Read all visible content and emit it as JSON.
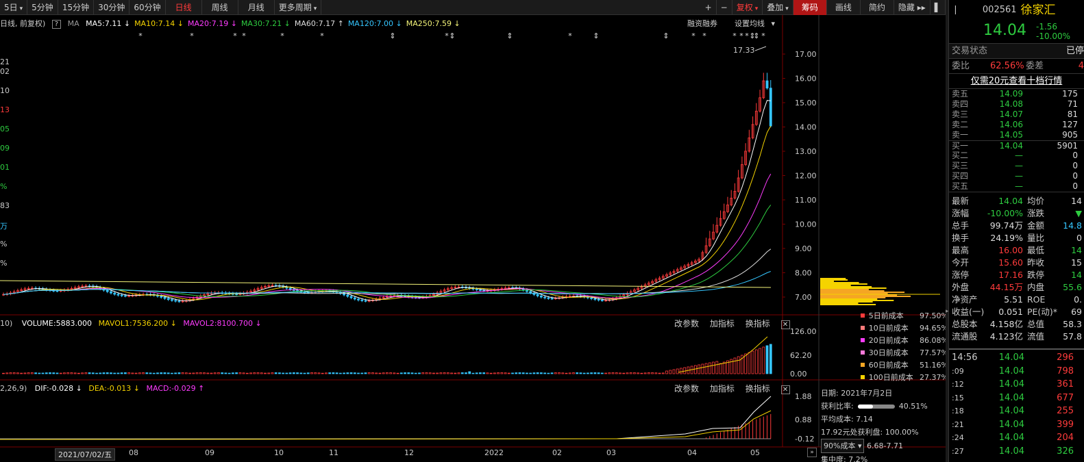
{
  "toolbar": {
    "items": [
      "5日",
      "5分钟",
      "15分钟",
      "30分钟",
      "60分钟",
      "日线",
      "周线",
      "月线",
      "更多周期"
    ],
    "right": [
      "+",
      "−",
      "复权",
      "叠加",
      "筹码",
      "画线",
      "简约",
      "隐藏"
    ]
  },
  "chart_title": "日线, 前复权)",
  "ma": {
    "label": "MA",
    "items": [
      {
        "text": "MA5:7.11",
        "arrow": "↓",
        "color": "#ffffff"
      },
      {
        "text": "MA10:7.14",
        "arrow": "↓",
        "color": "#f5d300"
      },
      {
        "text": "MA20:7.19",
        "arrow": "↓",
        "color": "#ff3cff"
      },
      {
        "text": "MA30:7.21",
        "arrow": "↓",
        "color": "#2ecc40"
      },
      {
        "text": "MA60:7.17",
        "arrow": "↑",
        "color": "#dddddd"
      },
      {
        "text": "MA120:7.00",
        "arrow": "↓",
        "color": "#35c6ff"
      },
      {
        "text": "MA250:7.59",
        "arrow": "↓",
        "color": "#f5f57a"
      }
    ],
    "rz": "融资融券",
    "setting": "设置均线"
  },
  "left_edge": [
    "21",
    "02",
    "10",
    "13",
    "05",
    "09",
    "01",
    "%",
    "83",
    "万",
    "%",
    "%"
  ],
  "price_axis": [
    "17.00",
    "16.00",
    "15.00",
    "14.00",
    "13.00",
    "12.00",
    "11.00",
    "10.00",
    "9.00",
    "8.00",
    "7.00"
  ],
  "high_label": "17.33",
  "volume": {
    "head": "10)",
    "text": "VOLUME:5883.000",
    "mavol1": "MAVOL1:7536.200",
    "mavol2": "MAVOL2:8100.700",
    "axis": [
      "126.00",
      "62.20",
      "0.00"
    ]
  },
  "macd": {
    "head": "2,26,9)",
    "dif": "DIF:-0.028",
    "dea": "DEA:-0.013",
    "macd": "MACD:-0.029",
    "axis": [
      "1.88",
      "0.88",
      "-0.12"
    ]
  },
  "pane_btns": [
    "改参数",
    "加指标",
    "换指标"
  ],
  "xaxis": {
    "first": "2021/07/02/五",
    "labels": [
      "08",
      "09",
      "10",
      "11",
      "12",
      "2022",
      "02",
      "03",
      "04",
      "05"
    ]
  },
  "cost": [
    {
      "label": "5日前成本",
      "value": "97.50%",
      "color": "#ff3b3b"
    },
    {
      "label": "10日前成本",
      "value": "94.65%",
      "color": "#ff7b7b"
    },
    {
      "label": "20日前成本",
      "value": "86.08%",
      "color": "#ff3cff"
    },
    {
      "label": "30日前成本",
      "value": "77.57%",
      "color": "#ff7ad9"
    },
    {
      "label": "60日前成本",
      "value": "51.16%",
      "color": "#f5a623"
    },
    {
      "label": "100日前成本",
      "value": "27.37%",
      "color": "#f5d300"
    }
  ],
  "costinfo": {
    "date": "日期: 2021年7月2日",
    "profit_label": "获利比率:",
    "profit_val": "40.51%",
    "profit_ratio": 0.4051,
    "avg": "平均成本: 7.14",
    "line3": "17.92元处获利盘: 100.00%",
    "sel": "90%成本",
    "range": "6.68-7.71",
    "conc": "集中度: 7.2%"
  },
  "quote": {
    "code": "002561",
    "name": "徐家汇",
    "price": "14.04",
    "chg": "-1.56",
    "pct": "-10.00%",
    "status_label": "交易状态",
    "status_val": "已停",
    "wb_label": "委比",
    "wb_val": "62.56%",
    "wc_label": "委差",
    "wc_val": "4",
    "promo": "仅需20元查看十档行情",
    "sell": [
      [
        "卖五",
        "14.09",
        "175"
      ],
      [
        "卖四",
        "14.08",
        "71"
      ],
      [
        "卖三",
        "14.07",
        "81"
      ],
      [
        "卖二",
        "14.06",
        "127"
      ],
      [
        "卖一",
        "14.05",
        "905"
      ]
    ],
    "buy": [
      [
        "买一",
        "14.04",
        "5901"
      ],
      [
        "买二",
        "—",
        "0"
      ],
      [
        "买三",
        "—",
        "0"
      ],
      [
        "买四",
        "—",
        "0"
      ],
      [
        "买五",
        "—",
        "0"
      ]
    ],
    "stats": [
      [
        "最新",
        "14.04",
        "均价",
        "14"
      ],
      [
        "涨幅",
        "-10.00%",
        "涨跌",
        "▼"
      ],
      [
        "总手",
        "99.74万",
        "金额",
        "14.8"
      ],
      [
        "换手",
        "24.19%",
        "量比",
        "0"
      ],
      [
        "最高",
        "16.00",
        "最低",
        "14"
      ],
      [
        "今开",
        "15.60",
        "昨收",
        "15"
      ],
      [
        "涨停",
        "17.16",
        "跌停",
        "14"
      ],
      [
        "外盘",
        "44.15万",
        "内盘",
        "55.6"
      ],
      [
        "净资产",
        "5.51",
        "ROE",
        "0."
      ],
      [
        "收益(一)",
        "0.051",
        "PE(动)*",
        "69"
      ],
      [
        "总股本",
        "4.158亿",
        "总值",
        "58.3"
      ],
      [
        "流通股",
        "4.123亿",
        "流值",
        "57.8"
      ]
    ],
    "ticks": [
      [
        "14:56",
        "14.04",
        "296"
      ],
      [
        ":09",
        "14.04",
        "798"
      ],
      [
        ":12",
        "14.04",
        "361"
      ],
      [
        ":15",
        "14.04",
        "677"
      ],
      [
        ":18",
        "14.04",
        "255"
      ],
      [
        ":21",
        "14.04",
        "399"
      ],
      [
        ":24",
        "14.04",
        "204"
      ],
      [
        ":27",
        "14.04",
        "326"
      ]
    ]
  },
  "colors": {
    "up": "#ff3b3b",
    "down": "#35c6ff",
    "grid": "#3a0000"
  }
}
